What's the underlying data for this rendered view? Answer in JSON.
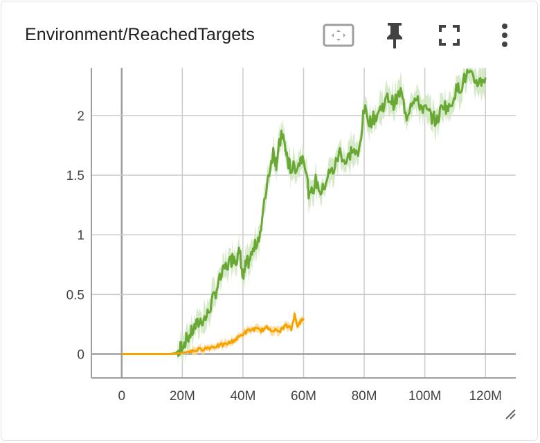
{
  "card": {
    "title": "Environment/ReachedTargets"
  },
  "toolbar": [
    {
      "name": "fit-domain-button",
      "icon": "fit-to-data-icon"
    },
    {
      "name": "pin-button",
      "icon": "pin-icon"
    },
    {
      "name": "fullscreen-button",
      "icon": "fullscreen-icon"
    },
    {
      "name": "more-options-button",
      "icon": "more-vert-icon"
    }
  ],
  "colors": {
    "grid": "#cccccc",
    "axis": "#9e9e9e",
    "green": "#6aa835",
    "green_band": "#cfe6bf",
    "orange": "#f5a300",
    "orange_band": "#fbd79a"
  },
  "chart_data": {
    "type": "line",
    "title": "Environment/ReachedTargets",
    "xlabel": "",
    "ylabel": "",
    "xlim": [
      -10,
      130
    ],
    "ylim": [
      -0.2,
      2.4
    ],
    "x_ticks": [
      0,
      20,
      40,
      60,
      80,
      100,
      120
    ],
    "x_tick_labels": [
      "0",
      "20M",
      "40M",
      "60M",
      "80M",
      "100M",
      "120M"
    ],
    "y_ticks": [
      0,
      0.5,
      1,
      1.5,
      2
    ],
    "y_tick_labels": [
      "0",
      "0.5",
      "1",
      "1.5",
      "2"
    ],
    "grid": true,
    "x_unit": "M steps",
    "series": [
      {
        "color": "#6aa835",
        "x": [
          0,
          4,
          8,
          12,
          16,
          18,
          19,
          20,
          22,
          24,
          26,
          28,
          30,
          32,
          34,
          36,
          37,
          38,
          39,
          40,
          41,
          42,
          44,
          46,
          48,
          50,
          51,
          52,
          53,
          54,
          55,
          56,
          58,
          60,
          62,
          64,
          66,
          68,
          70,
          72,
          74,
          76,
          78,
          80,
          82,
          84,
          86,
          88,
          90,
          92,
          94,
          96,
          98,
          100,
          102,
          104,
          106,
          108,
          110,
          112,
          114,
          116,
          118,
          120
        ],
        "y": [
          0,
          0,
          0,
          0,
          0,
          0.01,
          0.04,
          0.08,
          0.14,
          0.22,
          0.28,
          0.31,
          0.45,
          0.6,
          0.72,
          0.78,
          0.82,
          0.8,
          0.86,
          0.62,
          0.75,
          0.78,
          0.9,
          1.05,
          1.45,
          1.7,
          1.6,
          1.75,
          1.85,
          1.72,
          1.6,
          1.55,
          1.58,
          1.68,
          1.3,
          1.45,
          1.35,
          1.5,
          1.55,
          1.7,
          1.6,
          1.72,
          1.65,
          2.05,
          1.95,
          2.0,
          2.08,
          2.15,
          2.1,
          2.2,
          2.0,
          2.15,
          2.1,
          2.05,
          2.0,
          1.95,
          2.1,
          2.05,
          2.2,
          2.25,
          2.35,
          2.3,
          2.28,
          2.32
        ],
        "band": 0.1
      },
      {
        "color": "#f5a300",
        "x": [
          0,
          4,
          8,
          12,
          16,
          18,
          20,
          22,
          24,
          26,
          28,
          30,
          32,
          34,
          36,
          38,
          40,
          42,
          44,
          46,
          48,
          50,
          52,
          54,
          56,
          57,
          58,
          59,
          60
        ],
        "y": [
          0,
          0,
          0,
          0,
          0,
          0.005,
          0.01,
          0.02,
          0.03,
          0.04,
          0.05,
          0.06,
          0.07,
          0.08,
          0.1,
          0.13,
          0.17,
          0.2,
          0.21,
          0.2,
          0.22,
          0.2,
          0.19,
          0.24,
          0.21,
          0.33,
          0.24,
          0.27,
          0.3
        ],
        "band": 0.03
      }
    ]
  }
}
